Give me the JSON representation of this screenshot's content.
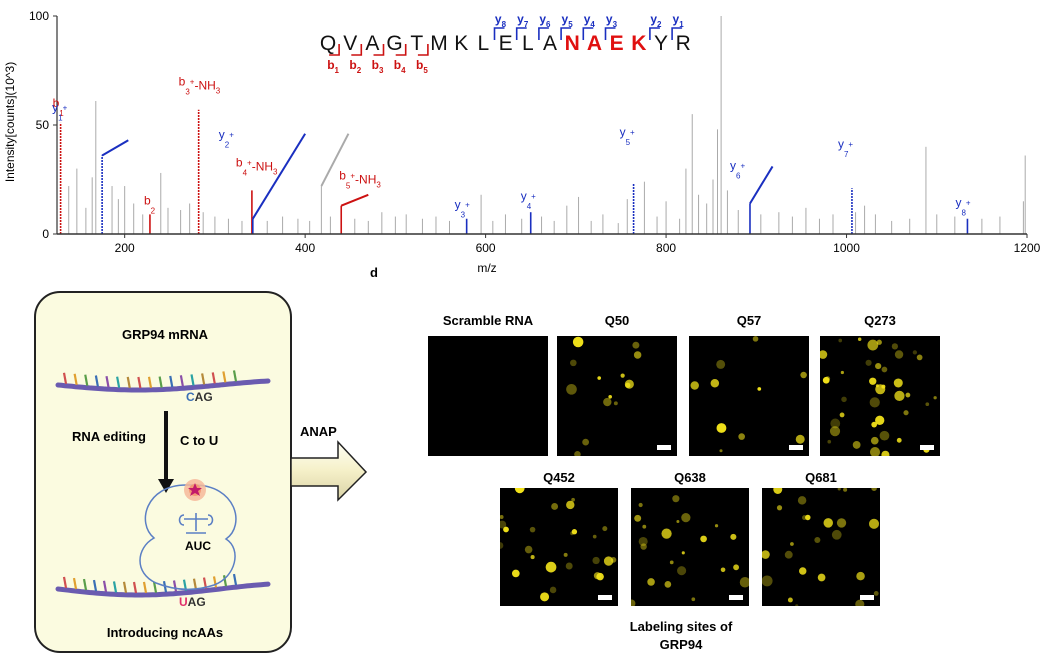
{
  "panel_label": "d",
  "chart_data": {
    "type": "bar",
    "xlabel": "m/z",
    "ylabel": "Intensity[counts](10^3)",
    "xlim": [
      125,
      1200
    ],
    "ylim": [
      0,
      100
    ],
    "x_ticks": [
      200,
      400,
      600,
      800,
      1000,
      1200
    ],
    "y_ticks": [
      0,
      50,
      100
    ],
    "grid": false,
    "peptide": {
      "residues": [
        "Q",
        "V",
        "A",
        "G",
        "T",
        "M",
        "K",
        "L",
        "E",
        "L",
        "A",
        "N",
        "A",
        "E",
        "K",
        "Y",
        "R"
      ],
      "highlight_start": 11,
      "highlight_end": 14,
      "highlight_color": "#e01010",
      "b_ions": [
        {
          "label": "b",
          "sub": "1",
          "after": 0
        },
        {
          "label": "b",
          "sub": "2",
          "after": 1
        },
        {
          "label": "b",
          "sub": "3",
          "after": 2
        },
        {
          "label": "b",
          "sub": "4",
          "after": 3
        },
        {
          "label": "b",
          "sub": "5",
          "after": 4
        }
      ],
      "y_ions": [
        {
          "label": "y",
          "sub": "8",
          "after": 8
        },
        {
          "label": "y",
          "sub": "7",
          "after": 9
        },
        {
          "label": "y",
          "sub": "6",
          "after": 10
        },
        {
          "label": "y",
          "sub": "5",
          "after": 11
        },
        {
          "label": "y",
          "sub": "4",
          "after": 12
        },
        {
          "label": "y",
          "sub": "3",
          "after": 13
        },
        {
          "label": "y",
          "sub": "2",
          "after": 15
        },
        {
          "label": "y",
          "sub": "1",
          "after": 16
        }
      ]
    },
    "series": [
      {
        "name": "b ions",
        "color": "#cc1111",
        "peaks": [
          {
            "mz": 129,
            "intensity": 51,
            "base": "b",
            "sub": "1",
            "sup": "",
            "suffix": ""
          },
          {
            "mz": 228,
            "intensity": 9,
            "base": "b",
            "sub": "2",
            "sup": "",
            "suffix": ""
          },
          {
            "mz": 282,
            "intensity": 57,
            "base": "b",
            "sub": "3",
            "sup": "+",
            "suffix": "-NH3"
          },
          {
            "mz": 341,
            "intensity": 20,
            "base": "b",
            "sub": "4",
            "sup": "+",
            "suffix": "-NH3"
          },
          {
            "mz": 440,
            "intensity": 13,
            "base": "b",
            "sub": "5",
            "sup": "+",
            "suffix": "-NH3"
          }
        ]
      },
      {
        "name": "y ions",
        "color": "#1a2fc0",
        "peaks": [
          {
            "mz": 175,
            "intensity": 36,
            "base": "y",
            "sub": "1",
            "sup": "+",
            "suffix": ""
          },
          {
            "mz": 342,
            "intensity": 7,
            "base": "y",
            "sub": "2",
            "sup": "+",
            "suffix": ""
          },
          {
            "mz": 579,
            "intensity": 7,
            "base": "y",
            "sub": "3",
            "sup": "+",
            "suffix": ""
          },
          {
            "mz": 650,
            "intensity": 10,
            "base": "y",
            "sub": "4",
            "sup": "+",
            "suffix": ""
          },
          {
            "mz": 764,
            "intensity": 23,
            "base": "y",
            "sub": "5",
            "sup": "+",
            "suffix": ""
          },
          {
            "mz": 893,
            "intensity": 14,
            "base": "y",
            "sub": "6",
            "sup": "+",
            "suffix": ""
          },
          {
            "mz": 1006,
            "intensity": 21,
            "base": "y",
            "sub": "7",
            "sup": "+",
            "suffix": ""
          },
          {
            "mz": 1134,
            "intensity": 7,
            "base": "y",
            "sub": "8",
            "sup": "+",
            "suffix": ""
          }
        ]
      },
      {
        "name": "unassigned",
        "color": "#aaaaaa",
        "peaks": [
          {
            "mz": 138,
            "intensity": 22
          },
          {
            "mz": 147,
            "intensity": 30
          },
          {
            "mz": 157,
            "intensity": 12
          },
          {
            "mz": 164,
            "intensity": 26
          },
          {
            "mz": 168,
            "intensity": 61
          },
          {
            "mz": 186,
            "intensity": 22
          },
          {
            "mz": 193,
            "intensity": 16
          },
          {
            "mz": 200,
            "intensity": 22
          },
          {
            "mz": 210,
            "intensity": 14
          },
          {
            "mz": 220,
            "intensity": 9
          },
          {
            "mz": 240,
            "intensity": 28
          },
          {
            "mz": 248,
            "intensity": 12
          },
          {
            "mz": 262,
            "intensity": 11
          },
          {
            "mz": 272,
            "intensity": 14
          },
          {
            "mz": 287,
            "intensity": 10
          },
          {
            "mz": 300,
            "intensity": 8
          },
          {
            "mz": 315,
            "intensity": 7
          },
          {
            "mz": 330,
            "intensity": 6
          },
          {
            "mz": 358,
            "intensity": 6
          },
          {
            "mz": 375,
            "intensity": 8
          },
          {
            "mz": 392,
            "intensity": 7
          },
          {
            "mz": 405,
            "intensity": 6
          },
          {
            "mz": 418,
            "intensity": 22
          },
          {
            "mz": 428,
            "intensity": 8
          },
          {
            "mz": 455,
            "intensity": 7
          },
          {
            "mz": 470,
            "intensity": 6
          },
          {
            "mz": 485,
            "intensity": 10
          },
          {
            "mz": 500,
            "intensity": 8
          },
          {
            "mz": 512,
            "intensity": 9
          },
          {
            "mz": 530,
            "intensity": 7
          },
          {
            "mz": 545,
            "intensity": 8
          },
          {
            "mz": 560,
            "intensity": 6
          },
          {
            "mz": 595,
            "intensity": 18
          },
          {
            "mz": 608,
            "intensity": 6
          },
          {
            "mz": 622,
            "intensity": 9
          },
          {
            "mz": 640,
            "intensity": 7
          },
          {
            "mz": 662,
            "intensity": 8
          },
          {
            "mz": 676,
            "intensity": 6
          },
          {
            "mz": 690,
            "intensity": 13
          },
          {
            "mz": 703,
            "intensity": 17
          },
          {
            "mz": 717,
            "intensity": 6
          },
          {
            "mz": 730,
            "intensity": 9
          },
          {
            "mz": 747,
            "intensity": 5
          },
          {
            "mz": 757,
            "intensity": 16
          },
          {
            "mz": 776,
            "intensity": 24
          },
          {
            "mz": 790,
            "intensity": 8
          },
          {
            "mz": 800,
            "intensity": 15
          },
          {
            "mz": 815,
            "intensity": 7
          },
          {
            "mz": 822,
            "intensity": 30
          },
          {
            "mz": 829,
            "intensity": 55
          },
          {
            "mz": 836,
            "intensity": 18
          },
          {
            "mz": 845,
            "intensity": 14
          },
          {
            "mz": 852,
            "intensity": 25
          },
          {
            "mz": 857,
            "intensity": 48
          },
          {
            "mz": 861,
            "intensity": 100
          },
          {
            "mz": 868,
            "intensity": 20
          },
          {
            "mz": 880,
            "intensity": 11
          },
          {
            "mz": 905,
            "intensity": 9
          },
          {
            "mz": 925,
            "intensity": 10
          },
          {
            "mz": 940,
            "intensity": 8
          },
          {
            "mz": 955,
            "intensity": 12
          },
          {
            "mz": 970,
            "intensity": 7
          },
          {
            "mz": 985,
            "intensity": 9
          },
          {
            "mz": 1010,
            "intensity": 10
          },
          {
            "mz": 1020,
            "intensity": 13
          },
          {
            "mz": 1032,
            "intensity": 9
          },
          {
            "mz": 1050,
            "intensity": 6
          },
          {
            "mz": 1070,
            "intensity": 7
          },
          {
            "mz": 1088,
            "intensity": 40
          },
          {
            "mz": 1100,
            "intensity": 9
          },
          {
            "mz": 1120,
            "intensity": 8
          },
          {
            "mz": 1150,
            "intensity": 7
          },
          {
            "mz": 1170,
            "intensity": 8
          },
          {
            "mz": 1196,
            "intensity": 15
          },
          {
            "mz": 1198,
            "intensity": 36
          }
        ]
      }
    ]
  },
  "schematic": {
    "mrna_title": "GRP94 mRNA",
    "codon_before_first": "C",
    "codon_before_rest": "AG",
    "editing_label": "RNA editing",
    "conversion_label": "C to U",
    "anticodon": "AUC",
    "codon_after_first": "U",
    "codon_after_rest": "AG",
    "caption": "Introducing ncAAs",
    "codon_c_color": "#3a6fb5",
    "codon_u_color": "#e0306a"
  },
  "arrow_label": "ANAP",
  "microscopy": {
    "row1": [
      "Scramble  RNA",
      "Q50",
      "Q57",
      "Q273"
    ],
    "row2": [
      "Q452",
      "Q638",
      "Q681"
    ],
    "caption_line1": "Labeling sites of",
    "caption_line2": "GRP94",
    "cell_color": "#f2e21a"
  }
}
